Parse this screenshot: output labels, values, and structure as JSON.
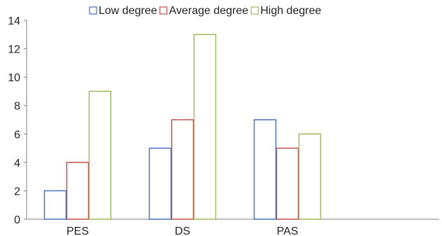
{
  "chart_data": {
    "type": "bar",
    "title": "",
    "xlabel": "",
    "ylabel": "",
    "categories": [
      "PES",
      "DS",
      "PAS"
    ],
    "series": [
      {
        "name": "Low degree",
        "color": "#4472c4",
        "values": [
          2,
          5,
          7
        ]
      },
      {
        "name": "Average degree",
        "color": "#c0504d",
        "values": [
          4,
          7,
          5
        ]
      },
      {
        "name": "High degree",
        "color": "#9bbb59",
        "values": [
          9,
          13,
          6
        ]
      }
    ],
    "ylim": [
      0,
      14
    ],
    "yticks": [
      0,
      2,
      4,
      6,
      8,
      10,
      12,
      14
    ],
    "grid": false,
    "legend_position": "top"
  }
}
